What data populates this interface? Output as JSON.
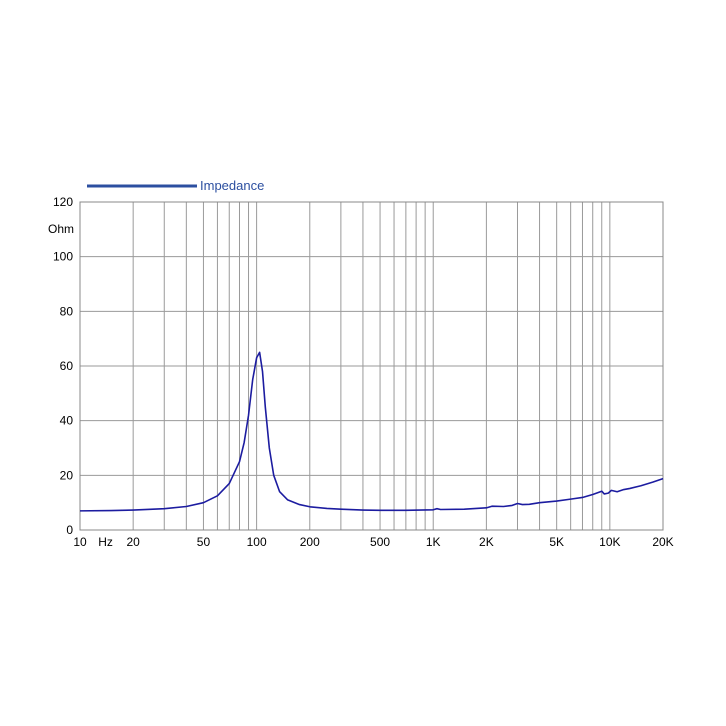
{
  "chart_data": {
    "type": "line",
    "x_scale": "log",
    "xlim": [
      10,
      20000
    ],
    "ylim": [
      0,
      120
    ],
    "ylabel": "Ohm",
    "xunit_label": "Hz",
    "grid": true,
    "legend_position": "top-left",
    "x_tick_labels": [
      {
        "value": 10,
        "label": "10"
      },
      {
        "value": 20,
        "label": "20"
      },
      {
        "value": 50,
        "label": "50"
      },
      {
        "value": 100,
        "label": "100"
      },
      {
        "value": 200,
        "label": "200"
      },
      {
        "value": 500,
        "label": "500"
      },
      {
        "value": 1000,
        "label": "1K"
      },
      {
        "value": 2000,
        "label": "2K"
      },
      {
        "value": 5000,
        "label": "5K"
      },
      {
        "value": 10000,
        "label": "10K"
      },
      {
        "value": 20000,
        "label": "20K"
      }
    ],
    "y_ticks": [
      0,
      20,
      40,
      60,
      80,
      100,
      120
    ],
    "x_grid": [
      10,
      20,
      30,
      40,
      50,
      60,
      70,
      80,
      90,
      100,
      200,
      300,
      400,
      500,
      600,
      700,
      800,
      900,
      1000,
      2000,
      3000,
      4000,
      5000,
      6000,
      7000,
      8000,
      9000,
      10000,
      20000
    ],
    "series": [
      {
        "name": "Impedance",
        "color": "#1c1ca0",
        "x": [
          10,
          15,
          20,
          30,
          40,
          50,
          60,
          70,
          80,
          85,
          90,
          95,
          100,
          104,
          108,
          112,
          118,
          125,
          135,
          150,
          175,
          200,
          250,
          300,
          400,
          500,
          700,
          1000,
          1050,
          1100,
          1500,
          2000,
          2150,
          2500,
          2800,
          3000,
          3200,
          3500,
          4000,
          5000,
          6000,
          7000,
          8000,
          9000,
          9300,
          9800,
          10200,
          11000,
          12000,
          13000,
          15000,
          17500,
          20000
        ],
        "y": [
          7,
          7.1,
          7.3,
          7.8,
          8.6,
          10,
          12.5,
          17,
          25,
          32,
          42,
          55,
          63,
          65,
          58,
          45,
          30,
          20,
          14,
          11,
          9.3,
          8.5,
          7.9,
          7.6,
          7.3,
          7.2,
          7.2,
          7.4,
          7.8,
          7.5,
          7.6,
          8.1,
          8.7,
          8.6,
          9,
          9.7,
          9.3,
          9.4,
          10,
          10.6,
          11.3,
          11.9,
          13,
          14.2,
          13.2,
          13.5,
          14.5,
          14,
          14.8,
          15.2,
          16.2,
          17.5,
          18.8
        ]
      }
    ]
  }
}
